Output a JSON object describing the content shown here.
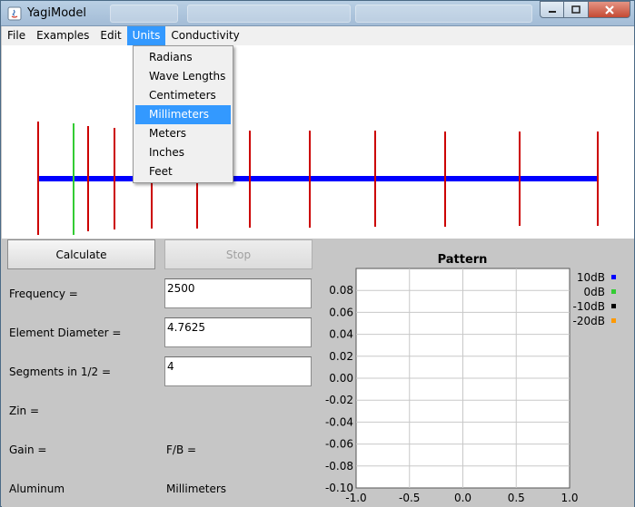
{
  "window": {
    "title": "YagiModel",
    "ghost_tabs": [
      "",
      "",
      ""
    ]
  },
  "menubar": {
    "items": [
      {
        "label": "File",
        "name": "menu-file"
      },
      {
        "label": "Examples",
        "name": "menu-examples"
      },
      {
        "label": "Edit",
        "name": "menu-edit"
      },
      {
        "label": "Units",
        "name": "menu-units",
        "active": true
      },
      {
        "label": "Conductivity",
        "name": "menu-conductivity"
      }
    ]
  },
  "units_menu": {
    "items": [
      "Radians",
      "Wave Lengths",
      "Centimeters",
      "Millimeters",
      "Meters",
      "Inches",
      "Feet"
    ],
    "selected": "Millimeters"
  },
  "antenna_diagram": {
    "boom_color": "#0000ff",
    "element_color": "#cc0000",
    "driven_element_color": "#33cc33"
  },
  "controls": {
    "calculate_label": "Calculate",
    "stop_label": "Stop",
    "frequency_label": "Frequency =",
    "frequency_value": "2500",
    "diameter_label": "Element Diameter =",
    "diameter_value": "4.7625",
    "segments_label": "Segments in 1/2 =",
    "segments_value": "4",
    "zin_label": "Zin =",
    "gain_label": "Gain =",
    "fb_label": "F/B =",
    "material_label": "Aluminum",
    "units_label": "Millimeters"
  },
  "chart_data": {
    "type": "line",
    "title": "Pattern",
    "xlabel": "",
    "ylabel": "",
    "xlim": [
      -1.0,
      1.0
    ],
    "ylim": [
      -0.1,
      0.1
    ],
    "x_ticks": [
      "-1.0",
      "-0.5",
      "0.0",
      "0.5",
      "1.0"
    ],
    "y_ticks": [
      "0.08",
      "0.06",
      "0.04",
      "0.02",
      "0.00",
      "-0.02",
      "-0.04",
      "-0.06",
      "-0.08",
      "-0.10"
    ],
    "grid": true,
    "legend_position": "top-right",
    "series": [
      {
        "name": "10dB",
        "color": "#0000ff",
        "values": []
      },
      {
        "name": "0dB",
        "color": "#33cc33",
        "values": []
      },
      {
        "name": "-10dB",
        "color": "#000000",
        "values": []
      },
      {
        "name": "-20dB",
        "color": "#ff9900",
        "values": []
      }
    ]
  }
}
